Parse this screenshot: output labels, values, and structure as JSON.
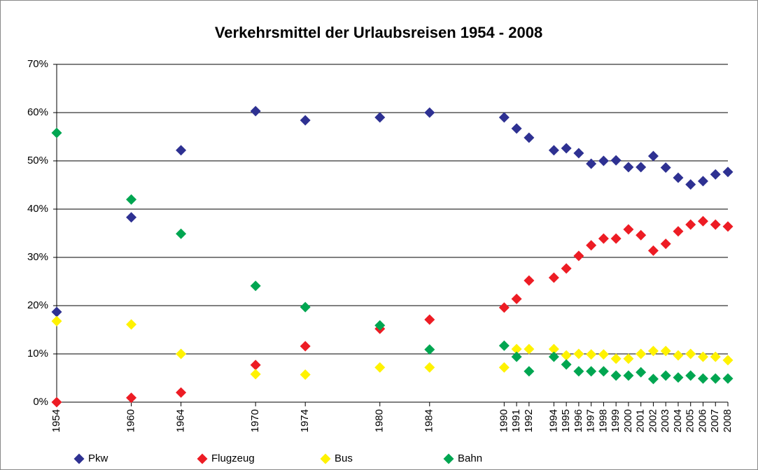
{
  "chart_data": {
    "type": "scatter",
    "title": "Verkehrsmittel der Urlaubsreisen 1954 - 2008",
    "x": [
      1954,
      1960,
      1964,
      1970,
      1974,
      1980,
      1984,
      1990,
      1991,
      1992,
      1994,
      1995,
      1996,
      1997,
      1998,
      1999,
      2000,
      2001,
      2002,
      2003,
      2004,
      2005,
      2006,
      2007,
      2008
    ],
    "series": [
      {
        "name": "Pkw",
        "color": "#2e3192",
        "values": [
          18.7,
          38.3,
          52.2,
          60.3,
          58.4,
          59.0,
          60.0,
          59.0,
          56.7,
          54.8,
          52.2,
          52.6,
          51.6,
          49.4,
          50.0,
          50.1,
          48.7,
          48.7,
          51.0,
          48.6,
          46.5,
          45.1,
          45.8,
          47.2,
          47.7
        ]
      },
      {
        "name": "Flugzeug",
        "color": "#ed1c24",
        "values": [
          0,
          0.9,
          2.0,
          7.7,
          11.6,
          15.2,
          17.1,
          19.6,
          21.4,
          25.2,
          25.8,
          27.7,
          30.3,
          32.5,
          33.9,
          33.9,
          35.8,
          34.6,
          31.4,
          32.8,
          35.4,
          36.8,
          37.5,
          36.8,
          36.4
        ]
      },
      {
        "name": "Bus",
        "color": "#fff200",
        "values": [
          16.8,
          16.1,
          10.0,
          5.8,
          5.7,
          7.2,
          7.2,
          7.2,
          11.0,
          11.0,
          11.0,
          9.7,
          10.0,
          9.9,
          9.9,
          9.0,
          9.0,
          10.0,
          10.6,
          10.6,
          9.7,
          10.0,
          9.4,
          9.4,
          8.7
        ]
      },
      {
        "name": "Bahn",
        "color": "#00a651",
        "values": [
          55.8,
          42.0,
          34.9,
          24.1,
          19.7,
          15.9,
          10.9,
          11.7,
          9.4,
          6.4,
          9.4,
          7.8,
          6.4,
          6.4,
          6.4,
          5.5,
          5.5,
          6.2,
          4.8,
          5.5,
          5.1,
          5.5,
          4.9,
          4.9,
          4.9
        ]
      }
    ],
    "xlim": [
      1954,
      2008
    ],
    "xticks": [
      1954,
      1960,
      1964,
      1970,
      1974,
      1980,
      1984,
      1990,
      1991,
      1992,
      1994,
      1995,
      1996,
      1997,
      1998,
      1999,
      2000,
      2001,
      2002,
      2003,
      2004,
      2005,
      2006,
      2007,
      2008
    ],
    "ylim": [
      0,
      70
    ],
    "yticks": [
      {
        "value": 0,
        "label": "0%"
      },
      {
        "value": 10,
        "label": "10%"
      },
      {
        "value": 20,
        "label": "20%"
      },
      {
        "value": 30,
        "label": "30%"
      },
      {
        "value": 40,
        "label": "40%"
      },
      {
        "value": 50,
        "label": "50%"
      },
      {
        "value": 60,
        "label": "60%"
      },
      {
        "value": 70,
        "label": "70%"
      }
    ],
    "grid": true,
    "legend": "bottom"
  }
}
